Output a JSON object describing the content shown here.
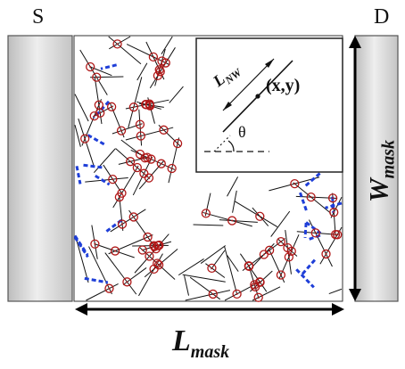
{
  "labels": {
    "source": "S",
    "drain": "D",
    "length_main": "L",
    "length_sub": "mask",
    "width_main": "W",
    "width_sub": "mask"
  },
  "inset": {
    "length_main": "L",
    "length_sub": "NW",
    "position": "(x,y)",
    "angle": "θ"
  },
  "colors": {
    "electrode_fill": "#c8c8c8",
    "wire": "#111111",
    "junction": "#b01818",
    "terminal_segment": "#1f3fd8",
    "arrow": "#000000"
  }
}
